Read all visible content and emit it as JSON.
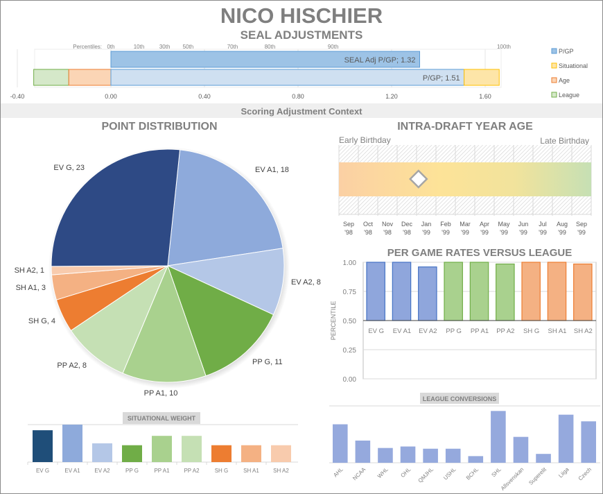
{
  "header": {
    "title": "NICO HISCHIER",
    "subtitle": "SEAL ADJUSTMENTS"
  },
  "seal_chart": {
    "percentiles_label": "Percentiles:",
    "percentiles": [
      {
        "label": "0th",
        "value": 0.0
      },
      {
        "label": "10th",
        "value": 0.12
      },
      {
        "label": "30th",
        "value": 0.23
      },
      {
        "label": "50th",
        "value": 0.33
      },
      {
        "label": "70th",
        "value": 0.52
      },
      {
        "label": "80th",
        "value": 0.68
      },
      {
        "label": "90th",
        "value": 0.95
      },
      {
        "label": "100th",
        "value": 1.68
      }
    ],
    "xticks": [
      "-0.40",
      "0.00",
      "0.40",
      "0.80",
      "1.20",
      "1.60"
    ],
    "xlim": [
      -0.4,
      1.8
    ],
    "seal_bar": {
      "label": "SEAL Adj P/GP; 1.32",
      "value": 1.32
    },
    "pgp_bar": {
      "label": "P/GP; 1.51",
      "value": 1.51
    },
    "league": [
      -0.33,
      -0.18
    ],
    "age": [
      -0.18,
      0.0
    ],
    "situational": [
      1.51,
      1.66
    ],
    "legend": [
      {
        "label": "P/GP",
        "color": "#9dc3e6",
        "border": "#5b9bd5"
      },
      {
        "label": "Situational",
        "color": "#fde5a8",
        "border": "#ffc000"
      },
      {
        "label": "Age",
        "color": "#fbd5b5",
        "border": "#ed7d31"
      },
      {
        "label": "League",
        "color": "#d5e8c9",
        "border": "#70ad47"
      }
    ]
  },
  "context_banner": "Scoring Adjustment Context",
  "chart_data": [
    {
      "type": "pie",
      "title": "POINT DISTRIBUTION",
      "slices": [
        {
          "label": "EV G",
          "value": 23,
          "color": "#2e4a85"
        },
        {
          "label": "EV A1",
          "value": 18,
          "color": "#8eaadb"
        },
        {
          "label": "EV A2",
          "value": 8,
          "color": "#b4c7e7"
        },
        {
          "label": "PP G",
          "value": 11,
          "color": "#70ad47"
        },
        {
          "label": "PP A1",
          "value": 10,
          "color": "#a9d18e"
        },
        {
          "label": "PP A2",
          "value": 8,
          "color": "#c5e0b4"
        },
        {
          "label": "SH G",
          "value": 4,
          "color": "#ed7d31"
        },
        {
          "label": "SH A1",
          "value": 3,
          "color": "#f4b183"
        },
        {
          "label": "SH A2",
          "value": 1,
          "color": "#f8cbad"
        }
      ]
    },
    {
      "type": "bar",
      "title": "SITUATIONAL  WEIGHT",
      "categories": [
        "EV G",
        "EV A1",
        "EV A2",
        "PP G",
        "PP A1",
        "PP A2",
        "SH G",
        "SH A1",
        "SH A2"
      ],
      "values": [
        0.85,
        1.0,
        0.5,
        0.45,
        0.7,
        0.7,
        0.45,
        0.45,
        0.45
      ],
      "colors": [
        "#1f4e79",
        "#8eaadb",
        "#b4c7e7",
        "#70ad47",
        "#a9d18e",
        "#c5e0b4",
        "#ed7d31",
        "#f4b183",
        "#f8cbad"
      ],
      "ylim": [
        0,
        1
      ]
    },
    {
      "type": "bar",
      "title": "PER GAME RATES VERSUS  LEAGUE",
      "ylabel": "PERCENTILE",
      "yticks": [
        "0.00",
        "0.25",
        "0.50",
        "0.75",
        "1.00"
      ],
      "ylim": [
        0,
        1
      ],
      "baseline": 0.5,
      "categories": [
        "EV G",
        "EV A1",
        "EV A2",
        "PP G",
        "PP A1",
        "PP A2",
        "SH G",
        "SH A1",
        "SH A2"
      ],
      "values": [
        1.0,
        1.0,
        0.96,
        1.0,
        1.0,
        0.985,
        1.0,
        1.0,
        0.985
      ],
      "colors": [
        "#8fa6dc",
        "#8fa6dc",
        "#8fa6dc",
        "#a9d18e",
        "#a9d18e",
        "#a9d18e",
        "#f4b183",
        "#f4b183",
        "#f4b183"
      ],
      "borders": [
        "#4472c4",
        "#4472c4",
        "#4472c4",
        "#70ad47",
        "#70ad47",
        "#70ad47",
        "#ed7d31",
        "#ed7d31",
        "#ed7d31"
      ]
    },
    {
      "type": "bar",
      "title": "LEAGUE CONVERSIONS",
      "categories": [
        "AHL",
        "NCAA",
        "WHL",
        "OHL",
        "QMJHL",
        "USHL",
        "BCHL",
        "SHL",
        "Allsvenskan",
        "Superelit",
        "Liiga",
        "Czech"
      ],
      "values": [
        52,
        30,
        20,
        22,
        19,
        19,
        9,
        70,
        35,
        12,
        65,
        56
      ],
      "ylim": [
        0,
        75
      ]
    }
  ],
  "age_chart": {
    "title": "INTRA-DRAFT YEAR AGE",
    "early_label": "Early Birthday",
    "late_label": "Late Birthday",
    "months": [
      [
        "Sep",
        "'98"
      ],
      [
        "Oct",
        "'98"
      ],
      [
        "Nov",
        "'98"
      ],
      [
        "Dec",
        "'98"
      ],
      [
        "Jan",
        "'99"
      ],
      [
        "Feb",
        "'99"
      ],
      [
        "Mar",
        "'99"
      ],
      [
        "Apr",
        "'99"
      ],
      [
        "May",
        "'99"
      ],
      [
        "Jun",
        "'99"
      ],
      [
        "Jul",
        "'99"
      ],
      [
        "Aug",
        "'99"
      ],
      [
        "Sep",
        "'99"
      ]
    ],
    "birthday_position_months": 4.1
  }
}
